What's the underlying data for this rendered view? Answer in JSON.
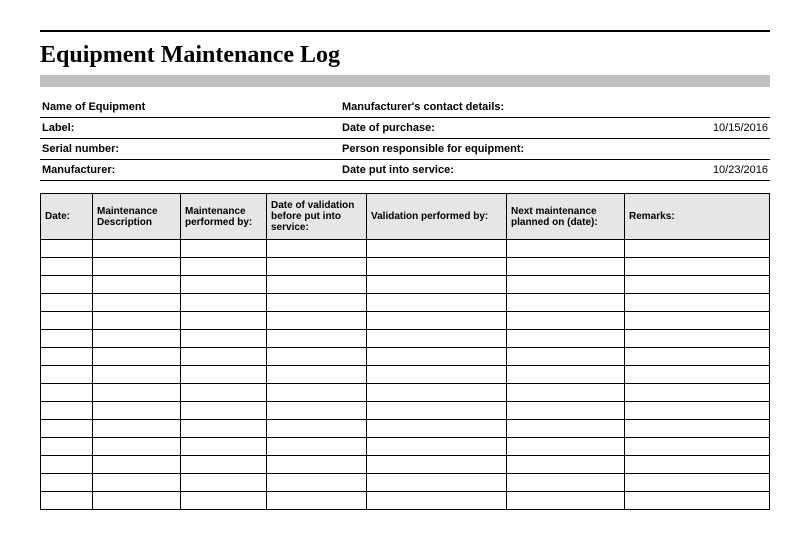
{
  "title": "Equipment Maintenance Log",
  "info": {
    "left_labels": [
      "Name of Equipment",
      "Label:",
      "Serial number:",
      "Manufacturer:"
    ],
    "left_values": [
      "",
      "",
      "",
      ""
    ],
    "right_labels": [
      "Manufacturer's contact details:",
      "Date of purchase:",
      "Person responsible for equipment:",
      "Date put into service:"
    ],
    "right_values": [
      "",
      "10/15/2016",
      "",
      "10/23/2016"
    ]
  },
  "log": {
    "columns": [
      "Date:",
      "Maintenance Description",
      "Maintenance performed by:",
      "Date of validation before put into service:",
      "Validation performed by:",
      "Next maintenance planned on (date):",
      "Remarks:"
    ],
    "row_count": 15
  },
  "style": {
    "background_color": "#ffffff",
    "title_bar_color": "#bfbfbf",
    "header_bg": "#e6e6e6",
    "border_color": "#000000",
    "title_font": "Times New Roman",
    "title_fontsize": 24,
    "label_fontsize": 11,
    "table_fontsize": 10
  }
}
